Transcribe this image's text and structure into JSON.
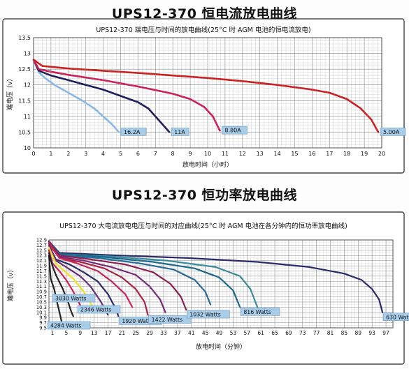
{
  "page": {
    "heading1": "UPS12-370 恒电流放电曲线",
    "heading2": "UPS12-370 恒功率放电曲线"
  },
  "chart_data": [
    {
      "type": "line",
      "title": "UPS12-370 端电压与时间的放电曲线(25°C 时 AGM 电池的恒电流放电)",
      "xlabel": "放电时间（小时）",
      "ylabel": "端电压（v）",
      "xlim": [
        0,
        20
      ],
      "ylim": [
        10,
        13.5
      ],
      "xticks": [
        "0",
        "1",
        "2",
        "3",
        "4",
        "5",
        "6",
        "7",
        "8",
        "9",
        "10",
        "11",
        "12",
        "13",
        "14",
        "15",
        "16",
        "17",
        "18",
        "19",
        "20"
      ],
      "yticks": [
        "10",
        "10.5",
        "11",
        "11.5",
        "12",
        "12.5",
        "13",
        "13.5"
      ],
      "grid": true,
      "series": [
        {
          "name": "16.2A",
          "color": "#8ab8e6",
          "x": [
            0,
            0.3,
            0.7,
            1.2,
            2,
            2.8,
            3.5,
            4,
            4.5,
            4.9
          ],
          "y": [
            12.8,
            12.4,
            12.2,
            12.0,
            11.75,
            11.5,
            11.25,
            11.0,
            10.75,
            10.5
          ]
        },
        {
          "name": "11A",
          "color": "#1f1f5e",
          "x": [
            0,
            0.3,
            1,
            2,
            3,
            4,
            5,
            6,
            6.6,
            7,
            7.4,
            7.8
          ],
          "y": [
            12.8,
            12.45,
            12.3,
            12.15,
            12.0,
            11.85,
            11.65,
            11.45,
            11.25,
            11.0,
            10.75,
            10.5
          ]
        },
        {
          "name": "8.80A",
          "color": "#cc2255",
          "x": [
            0,
            0.3,
            1,
            2,
            4,
            6,
            8,
            9,
            9.8,
            10.3,
            10.7
          ],
          "y": [
            12.8,
            12.5,
            12.42,
            12.32,
            12.15,
            11.95,
            11.72,
            11.55,
            11.3,
            11.0,
            10.55
          ]
        },
        {
          "name": "5.00A",
          "color": "#cc2222",
          "x": [
            0,
            0.5,
            2,
            4,
            6,
            8,
            10,
            12,
            14,
            16,
            17,
            18,
            18.8,
            19.4,
            19.8
          ],
          "y": [
            12.8,
            12.6,
            12.52,
            12.45,
            12.38,
            12.3,
            12.22,
            12.12,
            12.0,
            11.85,
            11.75,
            11.55,
            11.25,
            10.9,
            10.5
          ]
        }
      ]
    },
    {
      "type": "line",
      "title": "UPS12-370 大电流放电电压与时间的对应曲线(25°C 时 AGM 电池在各分钟内的恒功率放电曲线)",
      "xlabel": "放电时间（分钟）",
      "ylabel": "端电压（v）",
      "xlim": [
        0,
        99
      ],
      "ylim": [
        9.5,
        12.9
      ],
      "xticks": [
        "1",
        "5",
        "9",
        "13",
        "17",
        "21",
        "25",
        "29",
        "33",
        "37",
        "41",
        "45",
        "49",
        "53",
        "57",
        "61",
        "65",
        "69",
        "73",
        "77",
        "81",
        "85",
        "89",
        "93",
        "97"
      ],
      "yticks": [
        "9.5",
        "9.7",
        "9.9",
        "10.1",
        "10.3",
        "10.5",
        "10.7",
        "10.9",
        "11.1",
        "11.3",
        "11.5",
        "11.7",
        "11.9",
        "12.1",
        "12.3",
        "12.5",
        "12.7",
        "12.9"
      ],
      "grid": true,
      "series": [
        {
          "name": "4284 Watts",
          "color": "#222222",
          "x": [
            0,
            0.5,
            1.5,
            2.5,
            3.3,
            3.8
          ],
          "y": [
            12.3,
            11.4,
            11.0,
            10.4,
            9.95,
            9.65
          ]
        },
        {
          "name": "3030 Watts",
          "color": "#222222",
          "x": [
            0,
            1,
            2,
            4,
            5.5,
            6.5,
            7
          ],
          "y": [
            12.4,
            11.9,
            11.55,
            11.0,
            10.5,
            10.1,
            9.95
          ]
        },
        {
          "name": "2346 Watts",
          "color": "#cc2255",
          "x": [
            0,
            1,
            3,
            5,
            7,
            8.5,
            9.5
          ],
          "y": [
            12.5,
            12.0,
            11.7,
            11.35,
            10.9,
            10.5,
            10.25
          ]
        },
        {
          "name": "",
          "color": "#f0e020",
          "x": [
            0,
            2,
            4,
            7,
            10,
            12,
            13
          ],
          "y": [
            12.6,
            12.0,
            11.75,
            11.4,
            10.9,
            10.45,
            10.1
          ]
        },
        {
          "name": "",
          "color": "#6b2b7b",
          "x": [
            0,
            2,
            5,
            9,
            12,
            15,
            17
          ],
          "y": [
            12.7,
            12.1,
            11.85,
            11.5,
            11.1,
            10.5,
            10.0
          ]
        },
        {
          "name": "1920 Watts",
          "color": "#2a2a6a",
          "x": [
            0,
            2,
            6,
            10,
            14,
            17,
            19,
            20
          ],
          "y": [
            12.7,
            12.15,
            11.95,
            11.65,
            11.3,
            10.8,
            10.3,
            9.95
          ]
        },
        {
          "name": "",
          "color": "#cc2255",
          "x": [
            0,
            3,
            8,
            14,
            18,
            22,
            24
          ],
          "y": [
            12.75,
            12.2,
            12.0,
            11.7,
            11.3,
            10.8,
            10.3
          ]
        },
        {
          "name": "1422 Watts",
          "color": "#aa2244",
          "x": [
            0,
            3,
            9,
            16,
            21,
            25,
            27.5,
            28.5
          ],
          "y": [
            12.8,
            12.2,
            12.05,
            11.8,
            11.45,
            11.0,
            10.5,
            10.0
          ]
        },
        {
          "name": "",
          "color": "#7a2a7a",
          "x": [
            0,
            3,
            10,
            18,
            25,
            29,
            32,
            33.5
          ],
          "y": [
            12.8,
            12.25,
            12.1,
            11.85,
            11.55,
            11.1,
            10.6,
            10.1
          ]
        },
        {
          "name": "1032 Watts",
          "color": "#8b2050",
          "x": [
            0,
            3,
            12,
            22,
            30,
            35,
            38,
            39.5
          ],
          "y": [
            12.85,
            12.3,
            12.15,
            11.95,
            11.65,
            11.2,
            10.7,
            10.2
          ]
        },
        {
          "name": "",
          "color": "#2a6a9a",
          "x": [
            0,
            3,
            14,
            26,
            36,
            42,
            45,
            46.5
          ],
          "y": [
            12.85,
            12.3,
            12.2,
            12.0,
            11.75,
            11.35,
            10.9,
            10.4
          ]
        },
        {
          "name": "816 Watts",
          "color": "#1a6a8a",
          "x": [
            0,
            3,
            15,
            30,
            42,
            49,
            53,
            55
          ],
          "y": [
            12.85,
            12.35,
            12.25,
            12.05,
            11.8,
            11.45,
            10.95,
            10.3
          ]
        },
        {
          "name": "",
          "color": "#3a8a9a",
          "x": [
            0,
            3,
            16,
            34,
            48,
            55,
            58,
            60
          ],
          "y": [
            12.85,
            12.35,
            12.28,
            12.1,
            11.85,
            11.5,
            11.0,
            10.3
          ]
        },
        {
          "name": "630 Watts",
          "color": "#2a2a6a",
          "x": [
            0,
            3,
            20,
            40,
            60,
            75,
            85,
            90,
            93,
            95,
            96
          ],
          "y": [
            12.85,
            12.4,
            12.3,
            12.2,
            12.05,
            11.85,
            11.6,
            11.35,
            11.0,
            10.6,
            10.1
          ]
        }
      ]
    }
  ]
}
